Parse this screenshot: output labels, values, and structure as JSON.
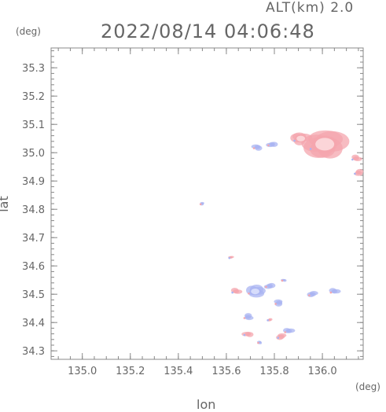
{
  "header": {
    "altitude": "ALT(km) 2.0",
    "datetime": "2022/08/14 04:06:48"
  },
  "colors": {
    "frame": "#888888",
    "positive": "#f4a6ae",
    "positive_core": "#fbd5d8",
    "negative": "#aab4f2"
  },
  "chart_data": {
    "type": "heatmap",
    "xlabel": "lon",
    "ylabel": "lat",
    "x_unit": "(deg)",
    "y_unit": "(deg)",
    "xlim": [
      134.87,
      136.17
    ],
    "ylim": [
      34.27,
      35.37
    ],
    "x_ticks": [
      "135.0",
      "135.2",
      "135.4",
      "135.6",
      "135.8",
      "136.0"
    ],
    "y_ticks": [
      "34.3",
      "34.4",
      "34.5",
      "34.6",
      "34.7",
      "34.8",
      "34.9",
      "35.0",
      "35.1",
      "35.2",
      "35.3"
    ],
    "echoes": [
      {
        "lon": 136.01,
        "lat": 35.03,
        "sign": "positive",
        "size": "large"
      },
      {
        "lon": 135.91,
        "lat": 35.05,
        "sign": "positive",
        "size": "medium"
      },
      {
        "lon": 136.14,
        "lat": 34.98,
        "sign": "positive",
        "size": "small"
      },
      {
        "lon": 136.15,
        "lat": 34.93,
        "sign": "positive",
        "size": "small"
      },
      {
        "lon": 135.79,
        "lat": 35.03,
        "sign": "negative",
        "size": "small"
      },
      {
        "lon": 135.73,
        "lat": 35.02,
        "sign": "negative",
        "size": "small"
      },
      {
        "lon": 135.5,
        "lat": 34.82,
        "sign": "negative",
        "size": "tiny"
      },
      {
        "lon": 135.62,
        "lat": 34.63,
        "sign": "positive",
        "size": "tiny"
      },
      {
        "lon": 135.64,
        "lat": 34.51,
        "sign": "positive",
        "size": "small"
      },
      {
        "lon": 135.72,
        "lat": 34.51,
        "sign": "negative",
        "size": "medium"
      },
      {
        "lon": 135.78,
        "lat": 34.53,
        "sign": "negative",
        "size": "small"
      },
      {
        "lon": 135.84,
        "lat": 34.55,
        "sign": "negative",
        "size": "tiny"
      },
      {
        "lon": 135.82,
        "lat": 34.47,
        "sign": "negative",
        "size": "small"
      },
      {
        "lon": 135.96,
        "lat": 34.5,
        "sign": "negative",
        "size": "small"
      },
      {
        "lon": 136.05,
        "lat": 34.51,
        "sign": "negative",
        "size": "small"
      },
      {
        "lon": 135.69,
        "lat": 34.42,
        "sign": "negative",
        "size": "small"
      },
      {
        "lon": 135.78,
        "lat": 34.41,
        "sign": "positive",
        "size": "tiny"
      },
      {
        "lon": 135.69,
        "lat": 34.36,
        "sign": "positive",
        "size": "small"
      },
      {
        "lon": 135.74,
        "lat": 34.33,
        "sign": "negative",
        "size": "tiny"
      },
      {
        "lon": 135.83,
        "lat": 34.35,
        "sign": "positive",
        "size": "small"
      },
      {
        "lon": 135.86,
        "lat": 34.37,
        "sign": "negative",
        "size": "small"
      }
    ]
  }
}
